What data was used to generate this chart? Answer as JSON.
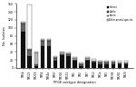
{
  "subtypes": [
    "TM5b",
    "TM123",
    "TM218",
    "TM54",
    "TM54a",
    "TM97",
    "TM302",
    "TM151",
    "TM1",
    "TM2",
    "TM7",
    "TM12",
    "TM1a",
    "TM3",
    "TM198",
    "TM281",
    "TM20"
  ],
  "human": [
    90,
    30,
    5,
    55,
    55,
    18,
    32,
    30,
    18,
    5,
    18,
    13,
    10,
    10,
    10,
    8,
    8
  ],
  "cattle": [
    20,
    15,
    3,
    12,
    12,
    6,
    3,
    3,
    3,
    3,
    3,
    3,
    3,
    3,
    3,
    3,
    3
  ],
  "swine": [
    3,
    3,
    30,
    3,
    3,
    3,
    3,
    3,
    3,
    3,
    3,
    3,
    3,
    3,
    3,
    3,
    3
  ],
  "other": [
    3,
    110,
    3,
    3,
    3,
    3,
    3,
    3,
    3,
    3,
    3,
    3,
    3,
    3,
    3,
    3,
    3
  ],
  "colors": {
    "human": "#111111",
    "cattle": "#666666",
    "swine": "#bbbbbb",
    "other": "#ffffff"
  },
  "ylabel": "No. Isolates",
  "xlabel": "PFGE subtype designation",
  "ylim": [
    0,
    160
  ],
  "yticks": [
    0,
    20,
    40,
    60,
    80,
    100,
    120,
    140,
    160
  ],
  "legend_labels": [
    "Human",
    "Cattle",
    "Swine",
    "Other animal species"
  ]
}
